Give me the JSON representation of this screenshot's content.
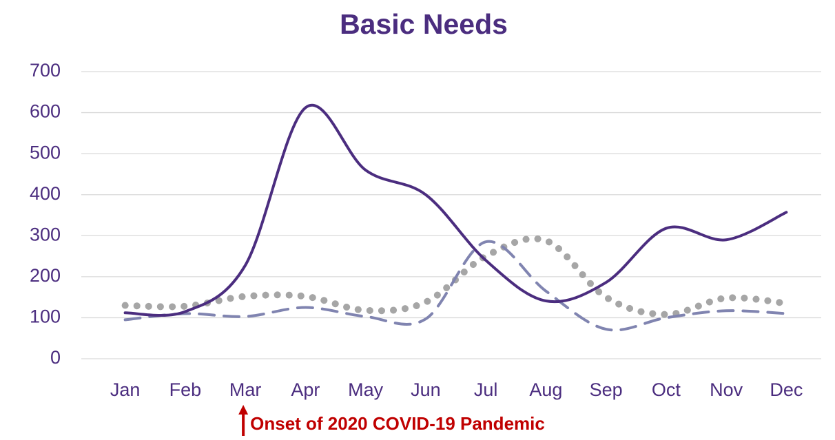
{
  "chart_data": {
    "type": "line",
    "title": "Basic Needs",
    "categories": [
      "Jan",
      "Feb",
      "Mar",
      "Apr",
      "May",
      "Jun",
      "Jul",
      "Aug",
      "Sep",
      "Oct",
      "Nov",
      "Dec"
    ],
    "series": [
      {
        "color": "#4b2d7f",
        "style": "solid",
        "values": [
          112,
          115,
          228,
          612,
          460,
          400,
          240,
          141,
          186,
          318,
          290,
          357
        ]
      },
      {
        "color": "#8084b0",
        "style": "dashed",
        "values": [
          95,
          110,
          103,
          125,
          103,
          97,
          285,
          165,
          72,
          100,
          117,
          110
        ]
      },
      {
        "color": "#a6a6a6",
        "style": "dotted",
        "values": [
          130,
          128,
          152,
          152,
          118,
          138,
          250,
          288,
          150,
          108,
          148,
          135
        ]
      }
    ],
    "ylim": [
      0,
      700
    ],
    "yticks": [
      0,
      100,
      200,
      300,
      400,
      500,
      600,
      700
    ],
    "grid": true,
    "annotation": {
      "text": "Onset of 2020 COVID-19 Pandemic",
      "category_index": 2,
      "color": "#c00000"
    }
  }
}
